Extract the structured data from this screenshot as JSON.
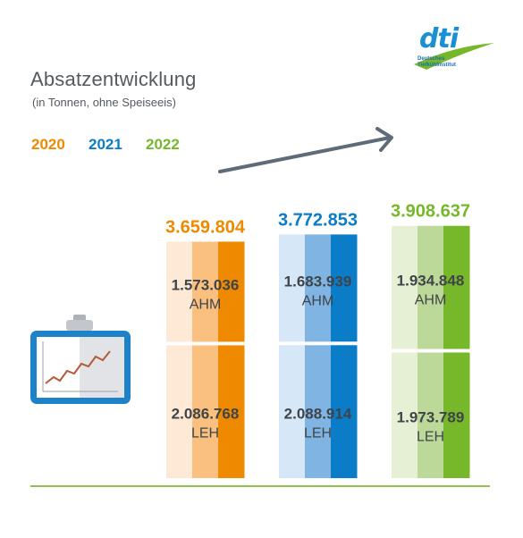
{
  "title": "Absatzentwicklung",
  "subtitle": "(in Tonnen, ohne Speiseeis)",
  "logo": {
    "word": "dti",
    "line1": "Deutsches",
    "line2": "Tiefkühlinstitut"
  },
  "legend": [
    {
      "label": "2020",
      "color": "#ef8a00"
    },
    {
      "label": "2021",
      "color": "#0a7cc8"
    },
    {
      "label": "2022",
      "color": "#76b82a"
    }
  ],
  "chart_data": {
    "type": "bar",
    "stacked": true,
    "categories": [
      "2020",
      "2021",
      "2022"
    ],
    "totals": [
      "3.659.804",
      "3.772.853",
      "3.908.637"
    ],
    "series": [
      {
        "name": "AHM",
        "values": [
          1573036,
          1683939,
          1934848
        ],
        "labels": [
          "1.573.036",
          "1.683.939",
          "1.934.848"
        ]
      },
      {
        "name": "LEH",
        "values": [
          2086768,
          2088914,
          1973789
        ],
        "labels": [
          "2.086.768",
          "2.088.914",
          "1.973.789"
        ]
      }
    ],
    "colors": {
      "2020": [
        "#fde9d5",
        "#f9c07f",
        "#ef8a00"
      ],
      "2021": [
        "#d6e7f7",
        "#7fb4e3",
        "#0a7cc8"
      ],
      "2022": [
        "#e6f0d5",
        "#bcd99a",
        "#76b82a"
      ]
    },
    "legend_position": "top-left"
  }
}
